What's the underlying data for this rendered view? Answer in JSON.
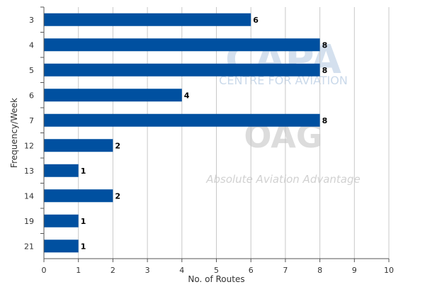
{
  "chart_data": {
    "type": "bar",
    "orientation": "horizontal",
    "categories": [
      "3",
      "4",
      "5",
      "6",
      "7",
      "12",
      "13",
      "14",
      "19",
      "21"
    ],
    "values": [
      6,
      8,
      8,
      4,
      8,
      2,
      1,
      2,
      1,
      1
    ],
    "xlabel": "No. of Routes",
    "ylabel": "Frequency/Week",
    "xlim": [
      0,
      10
    ],
    "x_ticks": [
      "0",
      "1",
      "2",
      "3",
      "4",
      "5",
      "6",
      "7",
      "8",
      "9",
      "10"
    ],
    "grid": "vertical",
    "legend": "none",
    "data_labels": true
  },
  "watermark": {
    "capa_logo": "CAPA",
    "capa_tagline": "CENTRE FOR AVIATION",
    "oag_logo": "OAG",
    "oag_tagline": "Absolute Aviation Advantage"
  },
  "colors": {
    "bar": "#0050A0",
    "grid": "#c8c8c8",
    "axis": "#555555",
    "text": "#333333",
    "watermark_capa": "#b9cde3",
    "watermark_oag": "#c6c6c6"
  }
}
